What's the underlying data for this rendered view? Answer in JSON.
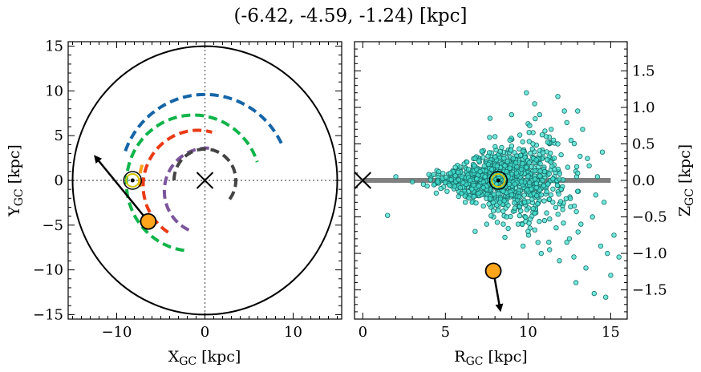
{
  "chart_data": [
    {
      "type": "scatter",
      "title": "(-6.42, -4.59, -1.24) [kpc]",
      "xlabel_main": "X",
      "xlabel_sub": "GC",
      "xlabel_unit": " [kpc]",
      "ylabel_main": "Y",
      "ylabel_sub": "GC",
      "ylabel_unit": " [kpc]",
      "xlim": [
        -15.5,
        15.5
      ],
      "ylim": [
        -15.5,
        15.5
      ],
      "xticks": [
        -10,
        0,
        10
      ],
      "xtick_labels": [
        "−10",
        "0",
        "10"
      ],
      "yticks": [
        -15,
        -10,
        -5,
        0,
        5,
        10,
        15
      ],
      "ytick_labels": [
        "−15",
        "−10",
        "−5",
        "0",
        "5",
        "10",
        "15"
      ],
      "grid": false,
      "circle_radius": 15,
      "galactic_center": [
        0,
        0
      ],
      "sun_position": [
        -8.2,
        0
      ],
      "object_position": [
        -6.42,
        -4.59
      ],
      "velocity_arrow_end": [
        -12.3,
        2.5
      ],
      "arms": [
        {
          "color": "#1565a8",
          "center": [
            0,
            0
          ],
          "radius": 9.6,
          "start_deg": 160,
          "end_deg": 25
        },
        {
          "color": "#10b44a",
          "center": [
            -1.3,
            -0.3
          ],
          "radius": 7.6,
          "start_deg": 262,
          "end_deg": 18
        },
        {
          "color": "#ea3b16",
          "center": [
            -0.8,
            -0.6
          ],
          "radius": 6.2,
          "start_deg": 237,
          "end_deg": 75
        },
        {
          "color": "#ff9f1c",
          "center": [
            -2.2,
            0
          ],
          "radius": 5.2,
          "start_deg": 188,
          "end_deg": 157
        },
        {
          "color": "#7b559c",
          "center": [
            0.2,
            -1.2
          ],
          "radius": 4.8,
          "start_deg": 245,
          "end_deg": 80
        },
        {
          "color": "#444444",
          "center": [
            0,
            0
          ],
          "radius": 3.5,
          "start_deg": 180,
          "end_deg": 315
        }
      ]
    },
    {
      "type": "scatter",
      "xlabel_main": "R",
      "xlabel_sub": "GC",
      "xlabel_unit": " [kpc]",
      "ylabel_main": "Z",
      "ylabel_sub": "GC",
      "ylabel_unit": " [kpc]",
      "xlim": [
        -0.5,
        16
      ],
      "ylim": [
        -1.9,
        1.9
      ],
      "xticks": [
        0,
        5,
        10,
        15
      ],
      "xtick_labels": [
        "0",
        "5",
        "10",
        "15"
      ],
      "yticks": [
        -1.5,
        -1.0,
        -0.5,
        0.0,
        0.5,
        1.0,
        1.5
      ],
      "ytick_labels": [
        "−1.5",
        "−1.0",
        "−0.5",
        "0.0",
        "0.5",
        "1.0",
        "1.5"
      ],
      "grid": false,
      "disk_line": {
        "x": [
          0,
          15
        ],
        "z": 0,
        "color": "#808080"
      },
      "galactic_center": [
        0,
        0
      ],
      "sun_position": [
        8.2,
        0
      ],
      "object_position": [
        7.9,
        -1.24
      ],
      "velocity_arrow_end": [
        8.3,
        -1.75
      ],
      "point_color": "#40e0d0",
      "point_edge": "#1a6e68",
      "points_sample_note": "",
      "points": [
        [
          1.5,
          -0.48
        ],
        [
          2.0,
          0.05
        ],
        [
          3.0,
          -0.02
        ],
        [
          4.0,
          0.08
        ],
        [
          4.3,
          -0.06
        ],
        [
          4.6,
          0.12
        ],
        [
          5.1,
          -0.15
        ],
        [
          5.3,
          0.1
        ],
        [
          5.6,
          0.18
        ],
        [
          5.8,
          -0.22
        ],
        [
          6.0,
          0.05
        ],
        [
          6.2,
          -0.3
        ],
        [
          6.3,
          0.25
        ],
        [
          6.5,
          0.0
        ],
        [
          6.6,
          -0.12
        ],
        [
          6.8,
          0.3
        ],
        [
          7.0,
          -0.18
        ],
        [
          7.1,
          0.12
        ],
        [
          7.2,
          0.4
        ],
        [
          7.3,
          -0.35
        ],
        [
          7.4,
          0.05
        ],
        [
          7.5,
          -0.08
        ],
        [
          7.6,
          0.22
        ],
        [
          7.7,
          -0.25
        ],
        [
          7.8,
          0.15
        ],
        [
          7.9,
          -0.42
        ],
        [
          8.0,
          0.32
        ],
        [
          8.1,
          -0.05
        ],
        [
          8.2,
          0.08
        ],
        [
          8.3,
          -0.3
        ],
        [
          8.4,
          0.45
        ],
        [
          8.5,
          -0.15
        ],
        [
          8.6,
          0.2
        ],
        [
          8.7,
          -0.5
        ],
        [
          8.8,
          0.05
        ],
        [
          8.9,
          0.55
        ],
        [
          9.0,
          -0.2
        ],
        [
          9.1,
          0.3
        ],
        [
          9.2,
          -0.38
        ],
        [
          9.3,
          0.1
        ],
        [
          9.4,
          -0.6
        ],
        [
          9.5,
          0.62
        ],
        [
          9.6,
          -0.02
        ],
        [
          9.7,
          0.4
        ],
        [
          9.8,
          -0.3
        ],
        [
          9.9,
          0.18
        ],
        [
          10.0,
          -0.7
        ],
        [
          10.1,
          0.75
        ],
        [
          10.2,
          -0.12
        ],
        [
          10.3,
          0.5
        ],
        [
          10.4,
          -0.45
        ],
        [
          10.5,
          0.28
        ],
        [
          10.6,
          -0.85
        ],
        [
          10.7,
          0.9
        ],
        [
          10.8,
          -0.2
        ],
        [
          10.9,
          0.38
        ],
        [
          11.0,
          -0.55
        ],
        [
          11.1,
          0.6
        ],
        [
          11.2,
          -0.05
        ],
        [
          11.3,
          -0.95
        ],
        [
          11.4,
          0.7
        ],
        [
          11.5,
          -0.3
        ],
        [
          11.6,
          0.15
        ],
        [
          11.7,
          -0.65
        ],
        [
          11.8,
          0.5
        ],
        [
          11.9,
          -1.1
        ],
        [
          12.0,
          0.35
        ],
        [
          12.1,
          -0.4
        ],
        [
          12.2,
          0.95
        ],
        [
          12.3,
          -0.25
        ],
        [
          12.5,
          -0.8
        ],
        [
          12.6,
          0.55
        ],
        [
          12.8,
          -0.35
        ],
        [
          13.0,
          0.1
        ],
        [
          13.2,
          -0.6
        ],
        [
          13.3,
          0.7
        ],
        [
          13.5,
          -1.2
        ],
        [
          13.7,
          0.2
        ],
        [
          13.9,
          -0.5
        ],
        [
          14.0,
          -1.55
        ],
        [
          14.2,
          0.05
        ],
        [
          14.4,
          -0.9
        ],
        [
          14.6,
          -0.3
        ],
        [
          14.8,
          -1.0
        ],
        [
          15.0,
          -1.3
        ],
        [
          15.2,
          -0.75
        ],
        [
          15.5,
          -1.05
        ],
        [
          11.8,
          1.15
        ],
        [
          9.9,
          1.2
        ],
        [
          7.7,
          0.85
        ],
        [
          9.0,
          0.9
        ],
        [
          10.4,
          1.05
        ],
        [
          12.9,
          -1.4
        ],
        [
          6.8,
          -0.7
        ],
        [
          7.5,
          -0.6
        ],
        [
          8.6,
          -0.78
        ],
        [
          9.7,
          -0.9
        ],
        [
          10.8,
          -1.0
        ],
        [
          14.7,
          -1.6
        ],
        [
          13.0,
          0.95
        ],
        [
          5.9,
          -0.1
        ],
        [
          6.4,
          0.15
        ],
        [
          6.9,
          0.02
        ],
        [
          7.3,
          -0.1
        ],
        [
          7.7,
          0.05
        ],
        [
          8.2,
          -0.18
        ],
        [
          8.7,
          0.12
        ],
        [
          9.2,
          -0.05
        ],
        [
          9.6,
          0.15
        ],
        [
          10.0,
          0.05
        ],
        [
          10.5,
          -0.1
        ],
        [
          11.0,
          0.12
        ],
        [
          11.5,
          0.02
        ],
        [
          12.0,
          -0.12
        ],
        [
          12.4,
          0.18
        ],
        [
          13.0,
          -0.15
        ],
        [
          13.6,
          0.3
        ],
        [
          14.1,
          -0.2
        ],
        [
          8.0,
          0.6
        ],
        [
          8.5,
          -0.6
        ]
      ]
    }
  ]
}
